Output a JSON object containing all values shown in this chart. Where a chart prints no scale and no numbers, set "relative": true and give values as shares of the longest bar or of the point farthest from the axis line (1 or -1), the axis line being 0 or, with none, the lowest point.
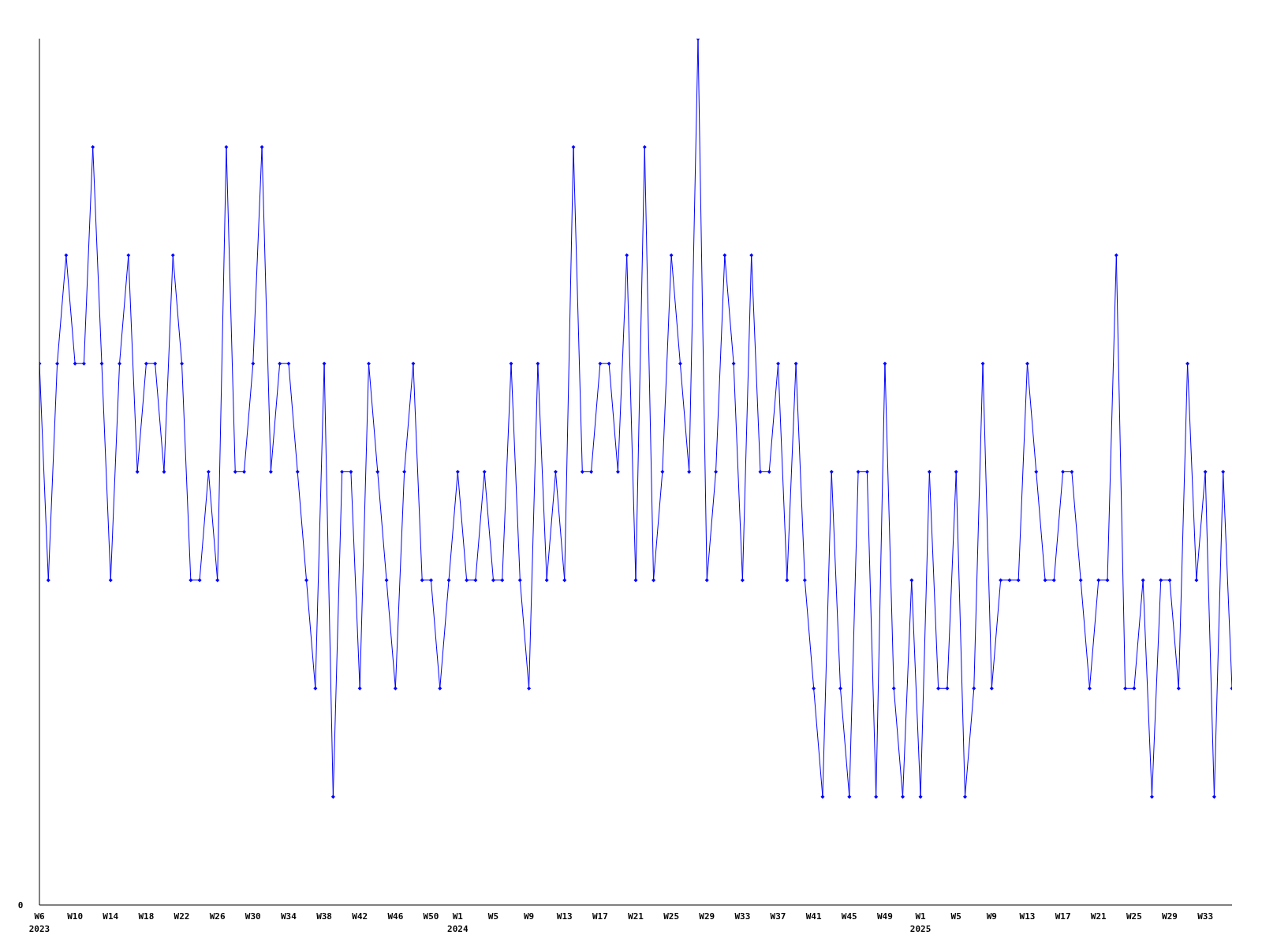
{
  "chart_data": {
    "type": "line",
    "relative": true,
    "annotations": [
      "0"
    ],
    "marker": "diamond",
    "grid": false,
    "legend": false,
    "categories": [
      "W6\n2023",
      null,
      null,
      null,
      "W10",
      null,
      null,
      null,
      "W14",
      null,
      null,
      null,
      "W18",
      null,
      null,
      null,
      "W22",
      null,
      null,
      null,
      "W26",
      null,
      null,
      null,
      "W30",
      null,
      null,
      null,
      "W34",
      null,
      null,
      null,
      "W38",
      null,
      null,
      null,
      "W42",
      null,
      null,
      null,
      "W46",
      null,
      null,
      null,
      "W50",
      null,
      null,
      "W1\n2024",
      null,
      null,
      null,
      "W5",
      null,
      null,
      null,
      "W9",
      null,
      null,
      null,
      "W13",
      null,
      null,
      null,
      "W17",
      null,
      null,
      null,
      "W21",
      null,
      null,
      null,
      "W25",
      null,
      null,
      null,
      "W29",
      null,
      null,
      null,
      "W33",
      null,
      null,
      null,
      "W37",
      null,
      null,
      null,
      "W41",
      null,
      null,
      null,
      "W45",
      null,
      null,
      null,
      "W49",
      null,
      null,
      null,
      "W1\n2025",
      null,
      null,
      null,
      "W5",
      null,
      null,
      null,
      "W9",
      null,
      null,
      null,
      "W13",
      null,
      null,
      null,
      "W17",
      null,
      null,
      null,
      "W21",
      null,
      null,
      null,
      "W25",
      null,
      null,
      null,
      "W29",
      null,
      null,
      null,
      "W33",
      null,
      null,
      null
    ],
    "series": [
      {
        "color": "#0000ff",
        "values": [
          0.625,
          0.375,
          0.625,
          0.75,
          0.625,
          0.625,
          0.875,
          0.625,
          0.375,
          0.625,
          0.75,
          0.5,
          0.625,
          0.625,
          0.5,
          0.75,
          0.625,
          0.375,
          0.375,
          0.5,
          0.375,
          0.875,
          0.5,
          0.5,
          0.625,
          0.875,
          0.5,
          0.625,
          0.625,
          0.5,
          0.375,
          0.25,
          0.625,
          0.125,
          0.5,
          0.5,
          0.25,
          0.625,
          0.5,
          0.375,
          0.25,
          0.5,
          0.625,
          0.375,
          0.375,
          0.25,
          0.375,
          0.5,
          0.375,
          0.375,
          0.5,
          0.375,
          0.375,
          0.625,
          0.375,
          0.25,
          0.625,
          0.375,
          0.5,
          0.375,
          0.875,
          0.5,
          0.5,
          0.625,
          0.625,
          0.5,
          0.75,
          0.375,
          0.875,
          0.375,
          0.5,
          0.75,
          0.625,
          0.5,
          1,
          0.375,
          0.5,
          0.75,
          0.625,
          0.375,
          0.75,
          0.5,
          0.5,
          0.625,
          0.375,
          0.625,
          0.375,
          0.25,
          0.125,
          0.5,
          0.25,
          0.125,
          0.5,
          0.5,
          0.125,
          0.625,
          0.25,
          0.125,
          0.375,
          0.125,
          0.5,
          0.25,
          0.25,
          0.5,
          0.125,
          0.25,
          0.625,
          0.25,
          0.375,
          0.375,
          0.375,
          0.625,
          0.5,
          0.375,
          0.375,
          0.5,
          0.5,
          0.375,
          0.25,
          0.375,
          0.375,
          0.75,
          0.25,
          0.25,
          0.375,
          0.125,
          0.375,
          0.375,
          0.25,
          0.625,
          0.375,
          0.5,
          0.125,
          0.5,
          0.25
        ]
      }
    ]
  }
}
